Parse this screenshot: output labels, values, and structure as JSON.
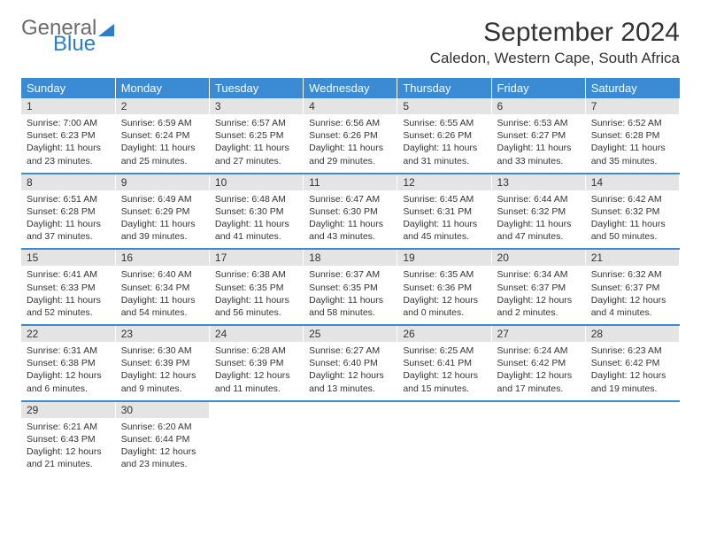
{
  "logo": {
    "general": "General",
    "blue": "Blue"
  },
  "title": "September 2024",
  "location": "Caledon, Western Cape, South Africa",
  "colors": {
    "header_bg": "#3b8bd4",
    "header_text": "#ffffff",
    "daynum_bg": "#e4e4e4",
    "text": "#333333",
    "logo_gray": "#6b6b6b",
    "logo_blue": "#2d7dc6"
  },
  "weekdays": [
    "Sunday",
    "Monday",
    "Tuesday",
    "Wednesday",
    "Thursday",
    "Friday",
    "Saturday"
  ],
  "days": [
    {
      "n": "1",
      "sr": "7:00 AM",
      "ss": "6:23 PM",
      "dl": "11 hours and 23 minutes."
    },
    {
      "n": "2",
      "sr": "6:59 AM",
      "ss": "6:24 PM",
      "dl": "11 hours and 25 minutes."
    },
    {
      "n": "3",
      "sr": "6:57 AM",
      "ss": "6:25 PM",
      "dl": "11 hours and 27 minutes."
    },
    {
      "n": "4",
      "sr": "6:56 AM",
      "ss": "6:26 PM",
      "dl": "11 hours and 29 minutes."
    },
    {
      "n": "5",
      "sr": "6:55 AM",
      "ss": "6:26 PM",
      "dl": "11 hours and 31 minutes."
    },
    {
      "n": "6",
      "sr": "6:53 AM",
      "ss": "6:27 PM",
      "dl": "11 hours and 33 minutes."
    },
    {
      "n": "7",
      "sr": "6:52 AM",
      "ss": "6:28 PM",
      "dl": "11 hours and 35 minutes."
    },
    {
      "n": "8",
      "sr": "6:51 AM",
      "ss": "6:28 PM",
      "dl": "11 hours and 37 minutes."
    },
    {
      "n": "9",
      "sr": "6:49 AM",
      "ss": "6:29 PM",
      "dl": "11 hours and 39 minutes."
    },
    {
      "n": "10",
      "sr": "6:48 AM",
      "ss": "6:30 PM",
      "dl": "11 hours and 41 minutes."
    },
    {
      "n": "11",
      "sr": "6:47 AM",
      "ss": "6:30 PM",
      "dl": "11 hours and 43 minutes."
    },
    {
      "n": "12",
      "sr": "6:45 AM",
      "ss": "6:31 PM",
      "dl": "11 hours and 45 minutes."
    },
    {
      "n": "13",
      "sr": "6:44 AM",
      "ss": "6:32 PM",
      "dl": "11 hours and 47 minutes."
    },
    {
      "n": "14",
      "sr": "6:42 AM",
      "ss": "6:32 PM",
      "dl": "11 hours and 50 minutes."
    },
    {
      "n": "15",
      "sr": "6:41 AM",
      "ss": "6:33 PM",
      "dl": "11 hours and 52 minutes."
    },
    {
      "n": "16",
      "sr": "6:40 AM",
      "ss": "6:34 PM",
      "dl": "11 hours and 54 minutes."
    },
    {
      "n": "17",
      "sr": "6:38 AM",
      "ss": "6:35 PM",
      "dl": "11 hours and 56 minutes."
    },
    {
      "n": "18",
      "sr": "6:37 AM",
      "ss": "6:35 PM",
      "dl": "11 hours and 58 minutes."
    },
    {
      "n": "19",
      "sr": "6:35 AM",
      "ss": "6:36 PM",
      "dl": "12 hours and 0 minutes."
    },
    {
      "n": "20",
      "sr": "6:34 AM",
      "ss": "6:37 PM",
      "dl": "12 hours and 2 minutes."
    },
    {
      "n": "21",
      "sr": "6:32 AM",
      "ss": "6:37 PM",
      "dl": "12 hours and 4 minutes."
    },
    {
      "n": "22",
      "sr": "6:31 AM",
      "ss": "6:38 PM",
      "dl": "12 hours and 6 minutes."
    },
    {
      "n": "23",
      "sr": "6:30 AM",
      "ss": "6:39 PM",
      "dl": "12 hours and 9 minutes."
    },
    {
      "n": "24",
      "sr": "6:28 AM",
      "ss": "6:39 PM",
      "dl": "12 hours and 11 minutes."
    },
    {
      "n": "25",
      "sr": "6:27 AM",
      "ss": "6:40 PM",
      "dl": "12 hours and 13 minutes."
    },
    {
      "n": "26",
      "sr": "6:25 AM",
      "ss": "6:41 PM",
      "dl": "12 hours and 15 minutes."
    },
    {
      "n": "27",
      "sr": "6:24 AM",
      "ss": "6:42 PM",
      "dl": "12 hours and 17 minutes."
    },
    {
      "n": "28",
      "sr": "6:23 AM",
      "ss": "6:42 PM",
      "dl": "12 hours and 19 minutes."
    },
    {
      "n": "29",
      "sr": "6:21 AM",
      "ss": "6:43 PM",
      "dl": "12 hours and 21 minutes."
    },
    {
      "n": "30",
      "sr": "6:20 AM",
      "ss": "6:44 PM",
      "dl": "12 hours and 23 minutes."
    }
  ],
  "labels": {
    "sunrise": "Sunrise:",
    "sunset": "Sunset:",
    "daylight": "Daylight:"
  },
  "layout": {
    "start_weekday": 0,
    "total_cells": 35
  }
}
